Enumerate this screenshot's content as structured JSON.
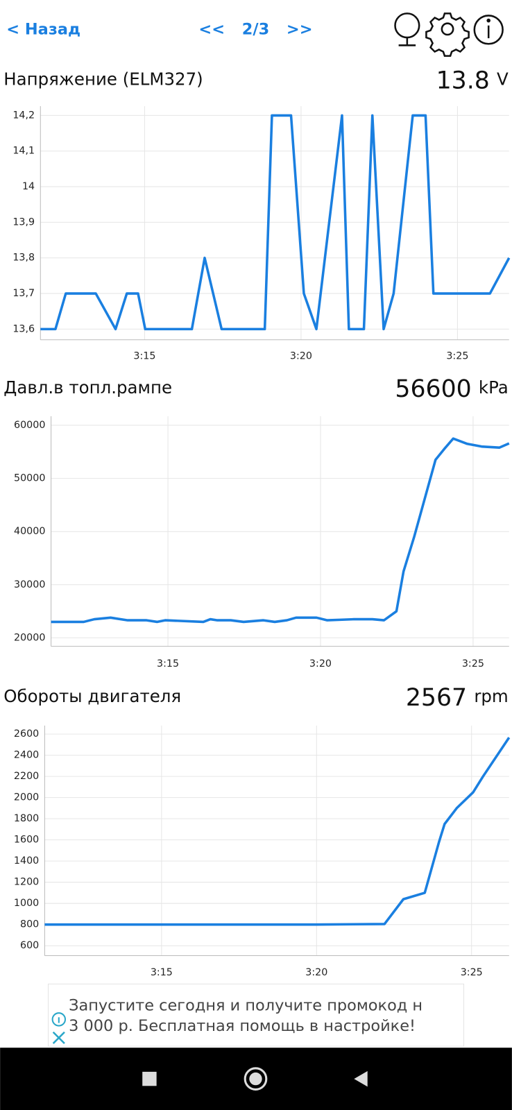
{
  "header": {
    "back": "< Назад",
    "prev": "<<",
    "page": "2/3",
    "next": ">>"
  },
  "chart_data": [
    {
      "type": "line",
      "title": "Напряжение (ELM327)",
      "current": "13.8",
      "unit": "V",
      "color": "#1a7fe0",
      "grid": true,
      "x": [
        11.67,
        12.15,
        12.48,
        13.44,
        14.07,
        14.43,
        14.79,
        15.02,
        16.51,
        16.92,
        17.46,
        18.84,
        19.07,
        19.68,
        20.09,
        20.49,
        21.31,
        21.53,
        22.01,
        22.28,
        22.64,
        22.96,
        23.57,
        23.98,
        24.23,
        26.04,
        26.65
      ],
      "values": [
        13.6,
        13.6,
        13.7,
        13.7,
        13.6,
        13.7,
        13.7,
        13.6,
        13.6,
        13.8,
        13.6,
        13.6,
        14.2,
        14.2,
        13.7,
        13.6,
        14.2,
        13.6,
        13.6,
        14.2,
        13.6,
        13.7,
        14.2,
        14.2,
        13.7,
        13.7,
        13.8
      ],
      "xlim": [
        11.67,
        26.65
      ],
      "xticks": [
        {
          "value": 15,
          "label": "3:15"
        },
        {
          "value": 20,
          "label": "3:20"
        },
        {
          "value": 25,
          "label": "3:25"
        }
      ],
      "ylim": [
        13.57,
        14.226
      ],
      "yticks": [
        {
          "value": 13.6,
          "label": "13,6"
        },
        {
          "value": 13.7,
          "label": "13,7"
        },
        {
          "value": 13.8,
          "label": "13,8"
        },
        {
          "value": 13.9,
          "label": "13,9"
        },
        14,
        {
          "value": 14.1,
          "label": "14,1"
        },
        {
          "value": 14.2,
          "label": "14,2"
        }
      ]
    },
    {
      "type": "line",
      "title": "Давл.в топл.рампе",
      "current": "56600",
      "unit": "kPa",
      "color": "#1a7fe0",
      "grid": true,
      "x": [
        11.17,
        12.24,
        12.59,
        13.12,
        13.68,
        14.3,
        14.65,
        14.91,
        16.16,
        16.39,
        16.62,
        17.06,
        17.48,
        18.13,
        18.5,
        18.9,
        19.2,
        19.87,
        20.22,
        20.64,
        21.1,
        21.7,
        22.08,
        22.49,
        22.72,
        23.07,
        23.77,
        24.05,
        24.35,
        24.81,
        25.28,
        25.86,
        26.18
      ],
      "values": [
        23000,
        23000,
        23500,
        23800,
        23300,
        23300,
        23000,
        23300,
        23000,
        23500,
        23300,
        23300,
        23000,
        23300,
        23000,
        23300,
        23800,
        23800,
        23300,
        23400,
        23500,
        23500,
        23300,
        25000,
        32500,
        39000,
        53500,
        55500,
        57500,
        56500,
        56000,
        55800,
        56600
      ],
      "xlim": [
        11.17,
        26.18
      ],
      "xticks": [
        {
          "value": 15,
          "label": "3:15"
        },
        {
          "value": 20,
          "label": "3:20"
        },
        {
          "value": 25,
          "label": "3:25"
        }
      ],
      "ylim": [
        18400,
        61700
      ],
      "yticks": [
        20000,
        30000,
        40000,
        50000,
        60000
      ]
    },
    {
      "type": "line",
      "title": "Обороты двигателя",
      "current": "2567",
      "unit": "rpm",
      "color": "#1a7fe0",
      "grid": true,
      "x": [
        11.23,
        16.64,
        19.99,
        22.19,
        22.8,
        23.49,
        23.95,
        24.13,
        24.52,
        25.05,
        25.37,
        26.21
      ],
      "values": [
        800,
        800,
        800,
        805,
        1040,
        1100,
        1580,
        1750,
        1900,
        2050,
        2200,
        2567
      ],
      "xlim": [
        11.23,
        26.21
      ],
      "xticks": [
        {
          "value": 15,
          "label": "3:15"
        },
        {
          "value": 20,
          "label": "3:20"
        },
        {
          "value": 25,
          "label": "3:25"
        }
      ],
      "ylim": [
        506,
        2680
      ],
      "yticks": [
        600,
        800,
        1000,
        1200,
        1400,
        1600,
        1800,
        2000,
        2200,
        2400,
        2600
      ]
    }
  ],
  "ad": {
    "line1": "Запустите сегодня и получите промокод н",
    "line2": "3 000 р. Бесплатная помощь в настройке!"
  }
}
